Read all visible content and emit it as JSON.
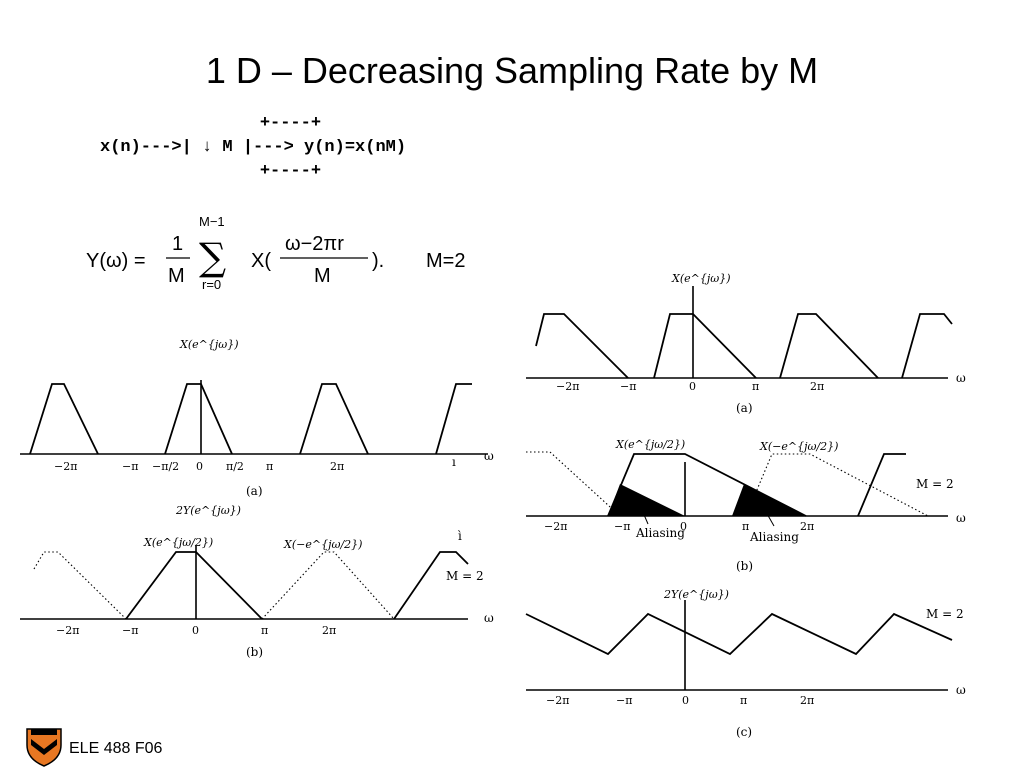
{
  "slide": {
    "title": "1 D – Decreasing Sampling Rate by M",
    "footer": "ELE 488 F06"
  },
  "block_diagram": {
    "line1": "+----+",
    "line2": "x(n)--->| ↓ M |---> y(n)=x(nM)",
    "line3": "+----+"
  },
  "formula": {
    "lhs": "Y(ω) =",
    "frac_num": "1",
    "frac_den": "M",
    "sum_upper": "M−1",
    "sum_lower": "r=0",
    "x_open": "X(",
    "arg_num": "ω−2πr",
    "arg_den": "M",
    "x_close": ").",
    "m_value": "M=2"
  },
  "figures": {
    "left_a": {
      "caption": "(a)",
      "func_label": "X(e^{jω})",
      "omega": "ω",
      "ticks": [
        "−2π",
        "−π",
        "−π/2",
        "0",
        "π/2",
        "π",
        "2π"
      ]
    },
    "left_b": {
      "caption": "(b)",
      "func_label": "2Y(e^{jω})",
      "label_pos": "X(e^{jω/2})",
      "label_neg": "X(−e^{jω/2})",
      "m_note": "M = 2",
      "omega": "ω",
      "ticks": [
        "−2π",
        "−π",
        "0",
        "π",
        "2π"
      ]
    },
    "right_a": {
      "caption": "(a)",
      "func_label": "X(e^{jω})",
      "omega": "ω",
      "ticks": [
        "−2π",
        "−π",
        "0",
        "π",
        "2π"
      ]
    },
    "right_b": {
      "caption": "(b)",
      "label_pos": "X(e^{jω/2})",
      "label_neg": "X(−e^{jω/2})",
      "m_note": "M = 2",
      "aliasing_1": "Aliasing",
      "aliasing_2": "Aliasing",
      "omega": "ω",
      "ticks": [
        "−2π",
        "−π",
        "0",
        "π",
        "2π"
      ]
    },
    "right_c": {
      "caption": "(c)",
      "func_label": "2Y(e^{jω})",
      "m_note": "M = 2",
      "omega": "ω",
      "ticks": [
        "−2π",
        "−π",
        "0",
        "π",
        "2π"
      ]
    }
  }
}
